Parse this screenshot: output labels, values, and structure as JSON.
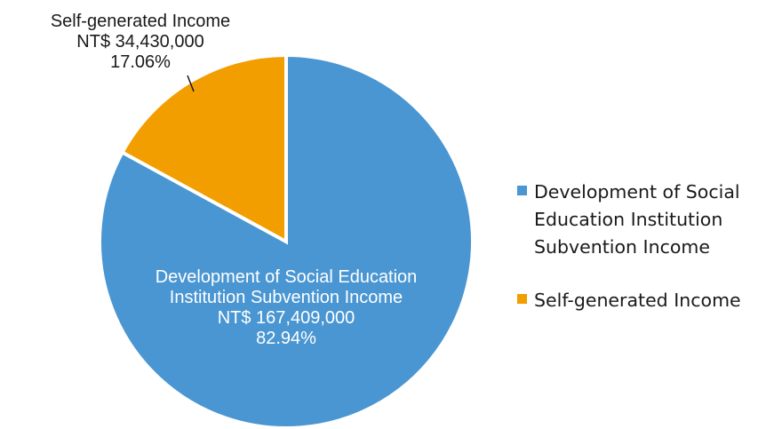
{
  "chart_data": {
    "type": "pie",
    "title": "",
    "slices": [
      {
        "name": "Development of Social Education Institution Subvention Income",
        "value": 167409000,
        "percent": 82.94,
        "color": "#4A96D2",
        "label_lines": [
          "Development of Social Education",
          "Institution Subvention Income",
          "NT$ 167,409,000",
          "82.94%"
        ],
        "legend_lines": [
          "Development of Social",
          "Education Institution",
          "Subvention Income"
        ]
      },
      {
        "name": "Self-generated Income",
        "value": 34430000,
        "percent": 17.06,
        "color": "#F29E00",
        "label_lines": [
          "Self-generated Income",
          "NT$ 34,430,000",
          "17.06%"
        ],
        "legend_lines": [
          "Self-generated Income"
        ]
      }
    ],
    "legend_position": "right",
    "start": "top",
    "direction": "clockwise"
  }
}
